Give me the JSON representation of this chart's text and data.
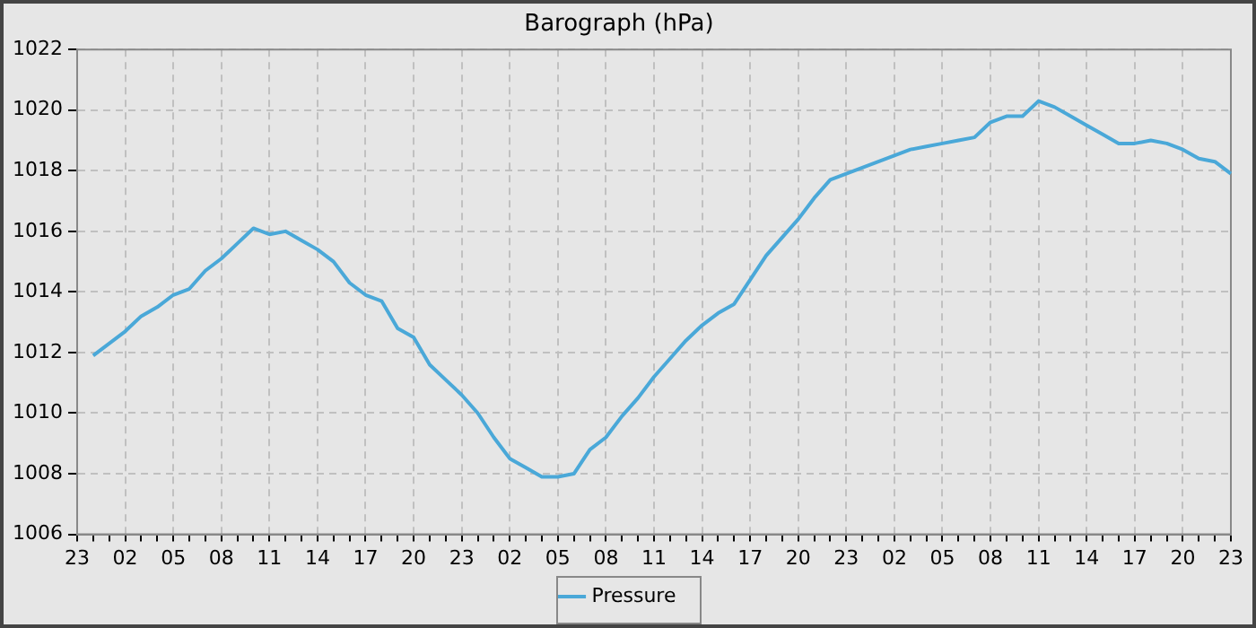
{
  "chart_data": {
    "type": "line",
    "title": "Barograph (hPa)",
    "categories": [
      "23",
      null,
      null,
      "02",
      null,
      null,
      "05",
      null,
      null,
      "08",
      null,
      null,
      "11",
      null,
      null,
      "14",
      null,
      null,
      "17",
      null,
      null,
      "20",
      null,
      null,
      "23",
      null,
      null,
      "02",
      null,
      null,
      "05",
      null,
      null,
      "08",
      null,
      null,
      "11",
      null,
      null,
      "14",
      null,
      null,
      "17",
      null,
      null,
      "20",
      null,
      null,
      "23",
      null,
      null,
      "02",
      null,
      null,
      "05",
      null,
      null,
      "08",
      null,
      null,
      "11",
      null,
      null,
      "14",
      null,
      null,
      "17",
      null,
      null,
      "20",
      null,
      null,
      "23"
    ],
    "series": [
      {
        "name": "Pressure",
        "color": "#4aa8d8",
        "values": [
          null,
          1011.9,
          1012.3,
          1012.7,
          1013.2,
          1013.5,
          1013.9,
          1014.1,
          1014.7,
          1015.1,
          1015.6,
          1016.1,
          1015.9,
          1016.0,
          1015.7,
          1015.4,
          1015.0,
          1014.3,
          1013.9,
          1013.7,
          1012.8,
          1012.5,
          1011.6,
          1011.1,
          1010.6,
          1010.0,
          1009.2,
          1008.5,
          1008.2,
          1007.9,
          1007.9,
          1008.0,
          1008.8,
          1009.2,
          1009.9,
          1010.5,
          1011.2,
          1011.8,
          1012.4,
          1012.9,
          1013.3,
          1013.6,
          1014.4,
          1015.2,
          1015.8,
          1016.4,
          1017.1,
          1017.7,
          1017.9,
          1018.1,
          1018.3,
          1018.5,
          1018.7,
          1018.8,
          1018.9,
          1019.0,
          1019.1,
          1019.6,
          1019.8,
          1019.8,
          1020.3,
          1020.1,
          1019.8,
          1019.5,
          1019.2,
          1018.9,
          1018.9,
          1019.0,
          1018.9,
          1018.7,
          1018.4,
          1018.3,
          1017.9
        ]
      }
    ],
    "ylim": [
      1006,
      1022
    ],
    "yticks": [
      1006,
      1008,
      1010,
      1012,
      1014,
      1016,
      1018,
      1020,
      1022
    ],
    "grid": true,
    "legend": "bottom",
    "marker": "none",
    "line_style": "solid"
  }
}
